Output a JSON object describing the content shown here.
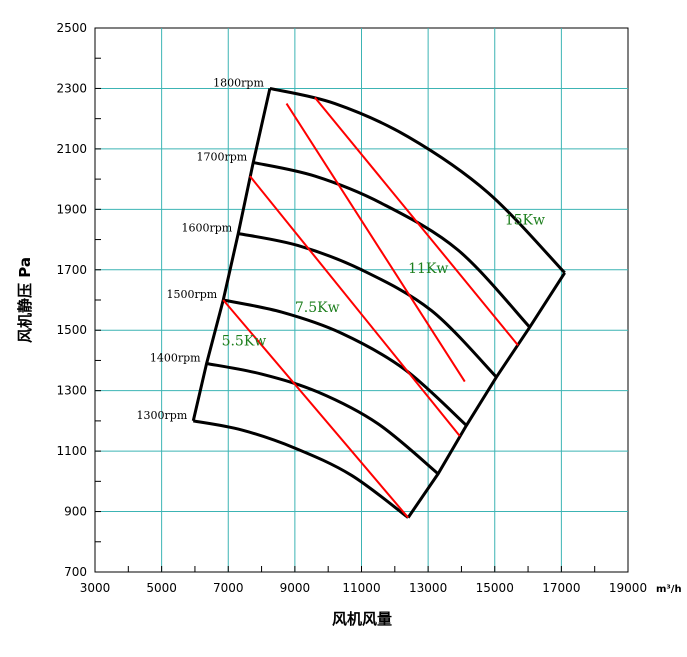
{
  "chart_data": {
    "type": "line",
    "xlabel": "风机风量",
    "ylabel": "风机静压  Pa",
    "x_unit": "m³/h",
    "xlim": [
      3000,
      19000
    ],
    "ylim": [
      700,
      2500
    ],
    "x_ticks": [
      3000,
      5000,
      7000,
      9000,
      11000,
      13000,
      15000,
      17000,
      19000
    ],
    "y_ticks": [
      700,
      900,
      1100,
      1300,
      1500,
      1700,
      1900,
      2100,
      2300,
      2500
    ],
    "grid": true,
    "colors": {
      "curve": "#000000",
      "power_line": "#ff0000",
      "power_label": "#1e7f1e",
      "grid": "#3cb4b4"
    },
    "speed_curves": [
      {
        "label": "1300rpm",
        "points": [
          [
            5950,
            1200
          ],
          [
            7400,
            1170
          ],
          [
            9000,
            1110
          ],
          [
            10700,
            1020
          ],
          [
            12400,
            880
          ]
        ]
      },
      {
        "label": "1400rpm",
        "points": [
          [
            6350,
            1390
          ],
          [
            8000,
            1355
          ],
          [
            9700,
            1295
          ],
          [
            11500,
            1190
          ],
          [
            13300,
            1025
          ]
        ]
      },
      {
        "label": "1500rpm",
        "points": [
          [
            6850,
            1600
          ],
          [
            8600,
            1560
          ],
          [
            10400,
            1490
          ],
          [
            12300,
            1370
          ],
          [
            14150,
            1185
          ]
        ]
      },
      {
        "label": "1600rpm",
        "points": [
          [
            7300,
            1820
          ],
          [
            9100,
            1780
          ],
          [
            11000,
            1700
          ],
          [
            13100,
            1565
          ],
          [
            15050,
            1345
          ]
        ]
      },
      {
        "label": "1700rpm",
        "points": [
          [
            7750,
            2055
          ],
          [
            9600,
            2010
          ],
          [
            11600,
            1920
          ],
          [
            13900,
            1765
          ],
          [
            16050,
            1510
          ]
        ]
      },
      {
        "label": "1800rpm",
        "points": [
          [
            8250,
            2300
          ],
          [
            10200,
            2250
          ],
          [
            12400,
            2140
          ],
          [
            14800,
            1955
          ],
          [
            17100,
            1690
          ]
        ]
      }
    ],
    "power_lines": [
      {
        "label": "5.5Kw",
        "points": [
          [
            6850,
            1600
          ],
          [
            12400,
            880
          ]
        ],
        "label_at": [
          7500,
          1450
        ]
      },
      {
        "label": "7.5Kw",
        "points": [
          [
            7750,
            2005
          ],
          [
            13950,
            1150
          ]
        ],
        "label_at": [
          8700,
          1645
        ]
      },
      {
        "label": "11Kw",
        "points": [
          [
            9700,
            2270
          ],
          [
            15700,
            1450
          ]
        ],
        "label_at": [
          12400,
          1820
        ]
      },
      {
        "label": "15Kw",
        "points": [
          [
            9600,
            2270
          ],
          [
            15700,
            1450
          ]
        ],
        "label_at": [
          14400,
          2025
        ]
      }
    ],
    "kw_labels": [
      {
        "text": "5.5Kw",
        "x": 6800,
        "y": 1450
      },
      {
        "text": "7.5Kw",
        "x": 9000,
        "y": 1560
      },
      {
        "text": "11Kw",
        "x": 12400,
        "y": 1690
      },
      {
        "text": "15Kw",
        "x": 15300,
        "y": 1850
      }
    ]
  }
}
